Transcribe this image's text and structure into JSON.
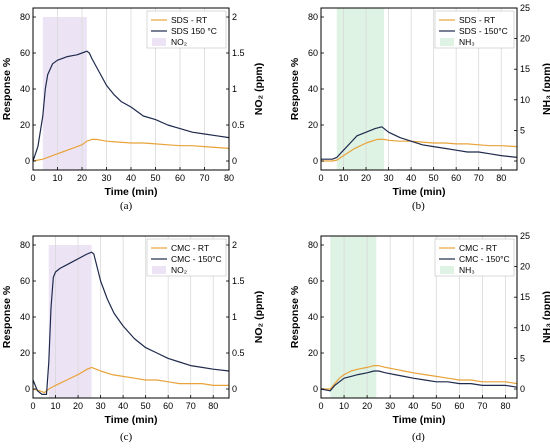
{
  "chart_data": [
    {
      "type": "line",
      "panel_label": "(a)",
      "xlabel": "Time (min)",
      "ylabel": "Response %",
      "y2label": "NO₂ (ppm)",
      "xlim": [
        0,
        80
      ],
      "ylim": [
        -5,
        85
      ],
      "y2lim": [
        -0.125,
        2.125
      ],
      "xticks": [
        0,
        10,
        20,
        30,
        40,
        50,
        60,
        70,
        80
      ],
      "yticks": [
        0,
        20,
        40,
        60,
        80
      ],
      "y2ticks": [
        0.0,
        0.5,
        1.0,
        1.5,
        2.0
      ],
      "grid": true,
      "legend": "top-right",
      "gas_window": [
        4,
        22
      ],
      "series": [
        {
          "name": "SDS - RT",
          "color": "#e8a33a",
          "x": [
            0,
            2,
            4,
            6,
            8,
            10,
            12,
            14,
            16,
            18,
            20,
            22,
            24,
            26,
            28,
            30,
            35,
            40,
            45,
            50,
            55,
            60,
            65,
            70,
            75,
            80
          ],
          "y": [
            0,
            0.5,
            1,
            2,
            3,
            4,
            5,
            6,
            7,
            8,
            9,
            11,
            12,
            12,
            11.5,
            11,
            10.5,
            10,
            10,
            9.5,
            9,
            8.5,
            8.5,
            8,
            7.5,
            7
          ]
        },
        {
          "name": "SDS 150 °C",
          "color": "#1f2a4d",
          "x": [
            0,
            2,
            4,
            5,
            6,
            8,
            10,
            12,
            14,
            16,
            18,
            20,
            22,
            23,
            24,
            26,
            28,
            30,
            33,
            36,
            40,
            45,
            50,
            55,
            60,
            65,
            70,
            75,
            80
          ],
          "y": [
            0,
            8,
            25,
            40,
            48,
            54,
            56,
            57,
            58,
            58.5,
            59,
            60,
            61,
            60,
            57,
            52,
            47,
            42,
            37,
            33,
            30,
            25,
            23,
            20,
            18,
            16,
            15,
            14,
            13
          ]
        },
        {
          "name": "NO₂",
          "color": "#ece4f5",
          "x": [
            4,
            22
          ],
          "y": [
            2,
            2
          ],
          "y_axis": "right"
        }
      ]
    },
    {
      "type": "line",
      "panel_label": "(b)",
      "xlabel": "Time (min)",
      "ylabel": "Response %",
      "y2label": "NH₃ (ppm)",
      "xlim": [
        0,
        87
      ],
      "ylim": [
        -5,
        85
      ],
      "y2lim": [
        -1.47,
        25
      ],
      "xticks": [
        0,
        10,
        20,
        30,
        40,
        50,
        60,
        70,
        80
      ],
      "yticks": [
        0,
        20,
        40,
        60,
        80
      ],
      "y2ticks": [
        0,
        5,
        10,
        15,
        20,
        25
      ],
      "grid": true,
      "legend": "top-right",
      "gas_window": [
        7,
        28
      ],
      "series": [
        {
          "name": "SDS - RT",
          "color": "#e8a33a",
          "x": [
            0,
            5,
            7,
            10,
            15,
            20,
            25,
            28,
            30,
            35,
            40,
            45,
            50,
            55,
            60,
            65,
            70,
            75,
            80,
            87
          ],
          "y": [
            0,
            0,
            0.5,
            3,
            7,
            10,
            12,
            12,
            11.5,
            11,
            11,
            10.5,
            10,
            10,
            9.5,
            9.5,
            9,
            8.5,
            8.5,
            8
          ]
        },
        {
          "name": "SDS - 150°C",
          "color": "#1f2a4d",
          "x": [
            0,
            5,
            7,
            10,
            13,
            16,
            20,
            24,
            27,
            30,
            35,
            40,
            45,
            50,
            55,
            60,
            65,
            70,
            75,
            80,
            87
          ],
          "y": [
            1,
            1,
            2,
            6,
            10,
            14,
            16,
            18,
            19,
            16,
            13,
            11,
            9,
            8,
            7,
            6,
            5,
            5,
            4,
            3,
            2
          ]
        },
        {
          "name": "NH₃",
          "color": "#dff3e4",
          "x": [
            7,
            28
          ],
          "y": [
            25,
            25
          ],
          "y_axis": "right"
        }
      ]
    },
    {
      "type": "line",
      "panel_label": "(c)",
      "xlabel": "Time (min)",
      "ylabel": "Response %",
      "y2label": "NO₂ (ppm)",
      "xlim": [
        0,
        87
      ],
      "ylim": [
        -5,
        85
      ],
      "y2lim": [
        -0.125,
        2.125
      ],
      "xticks": [
        0,
        10,
        20,
        30,
        40,
        50,
        60,
        70,
        80
      ],
      "yticks": [
        0,
        20,
        40,
        60,
        80
      ],
      "y2ticks": [
        0.0,
        0.5,
        1.0,
        1.5,
        2.0
      ],
      "grid": true,
      "legend": "top-right",
      "gas_window": [
        7,
        26
      ],
      "series": [
        {
          "name": "CMC - RT",
          "color": "#e8a33a",
          "x": [
            0,
            3,
            5,
            7,
            10,
            15,
            20,
            24,
            26,
            28,
            30,
            35,
            40,
            45,
            50,
            55,
            60,
            65,
            70,
            75,
            80,
            87
          ],
          "y": [
            0,
            -1,
            -2,
            0,
            2,
            5,
            8,
            11,
            12,
            11,
            10,
            8,
            7,
            6,
            5,
            5,
            4,
            3,
            3,
            3,
            2,
            2
          ]
        },
        {
          "name": "CMC - 150°C",
          "color": "#1f2a4d",
          "x": [
            0,
            2,
            4,
            6,
            7,
            8,
            9,
            10,
            12,
            15,
            18,
            21,
            24,
            26,
            27,
            28,
            30,
            33,
            36,
            40,
            45,
            50,
            55,
            60,
            65,
            70,
            75,
            80,
            87
          ],
          "y": [
            5,
            -1,
            -3,
            -3,
            15,
            45,
            62,
            65,
            67,
            69,
            71,
            73,
            75,
            76,
            75,
            70,
            60,
            50,
            42,
            35,
            28,
            23,
            20,
            17,
            15,
            13,
            12,
            11,
            10
          ]
        },
        {
          "name": "NO₂",
          "color": "#ece4f5",
          "x": [
            7,
            26
          ],
          "y": [
            2,
            2
          ],
          "y_axis": "right"
        }
      ]
    },
    {
      "type": "line",
      "panel_label": "(d)",
      "xlabel": "Time (min)",
      "ylabel": "Response %",
      "y2label": "NH₃ (ppm)",
      "xlim": [
        0,
        85
      ],
      "ylim": [
        -5,
        85
      ],
      "y2lim": [
        -1.47,
        25
      ],
      "xticks": [
        0,
        10,
        20,
        30,
        40,
        50,
        60,
        70,
        80
      ],
      "yticks": [
        0,
        20,
        40,
        60,
        80
      ],
      "y2ticks": [
        0,
        5,
        10,
        15,
        20,
        25
      ],
      "grid": true,
      "legend": "top-right",
      "gas_window": [
        4,
        24
      ],
      "series": [
        {
          "name": "CMC - RT",
          "color": "#e8a33a",
          "x": [
            0,
            4,
            6,
            8,
            10,
            13,
            16,
            20,
            23,
            25,
            28,
            32,
            36,
            40,
            45,
            50,
            55,
            60,
            65,
            70,
            75,
            80,
            85
          ],
          "y": [
            0,
            0,
            3,
            6,
            8,
            10,
            11,
            12,
            13,
            13,
            12,
            11,
            10,
            9,
            8,
            7,
            6,
            5,
            5,
            4,
            4,
            4,
            3
          ]
        },
        {
          "name": "CMC - 150°C",
          "color": "#1f2a4d",
          "x": [
            0,
            4,
            6,
            8,
            10,
            13,
            16,
            20,
            23,
            25,
            28,
            32,
            36,
            40,
            45,
            50,
            55,
            60,
            65,
            70,
            75,
            80,
            85
          ],
          "y": [
            0,
            -1,
            2,
            4,
            6,
            7,
            8,
            9,
            10,
            10,
            9,
            8,
            7,
            6,
            5,
            4,
            4,
            3,
            3,
            2,
            2,
            2,
            1
          ]
        },
        {
          "name": "NH₃",
          "color": "#dff3e4",
          "x": [
            4,
            24
          ],
          "y": [
            25,
            25
          ],
          "y_axis": "right"
        }
      ]
    }
  ]
}
